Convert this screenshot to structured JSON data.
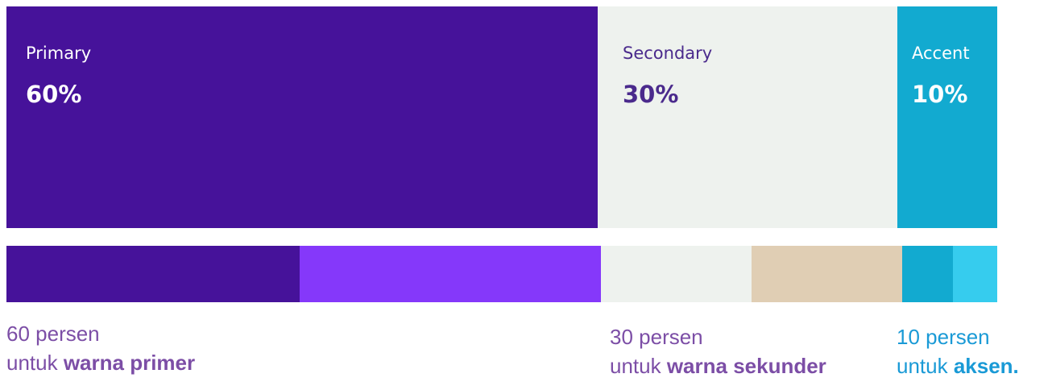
{
  "blocks": {
    "primary": {
      "label": "Primary",
      "percent": "60%",
      "color": "#46129a",
      "text_color": "#ffffff"
    },
    "secondary": {
      "label": "Secondary",
      "percent": "30%",
      "color": "#eef2ee",
      "text_color": "#4a2a8c"
    },
    "accent": {
      "label": "Accent",
      "percent": "10%",
      "color": "#12aad0",
      "text_color": "#ffffff"
    }
  },
  "chart_data": {
    "type": "bar",
    "orientation": "horizontal-stacked",
    "categories": [
      "Primary",
      "Secondary",
      "Accent"
    ],
    "values": [
      60,
      30,
      10
    ]
  },
  "swatches": [
    "#46129a",
    "#8538fa",
    "#eef2ee",
    "#e0ceb4",
    "#12aad0",
    "#36ccee"
  ],
  "captions": {
    "primary": {
      "line1": "60 persen",
      "prefix": "untuk ",
      "bold": "warna primer",
      "color": "#7c4ea6",
      "bold_color": "#7c4ea6"
    },
    "secondary": {
      "line1": "30 persen",
      "prefix": "untuk ",
      "bold": "warna sekunder",
      "color": "#7c4ea6",
      "bold_color": "#7c4ea6"
    },
    "accent": {
      "line1": "10 persen",
      "prefix": "untuk ",
      "bold": "aksen.",
      "color": "#1a9ad6",
      "bold_color": "#1a9ad6"
    }
  }
}
